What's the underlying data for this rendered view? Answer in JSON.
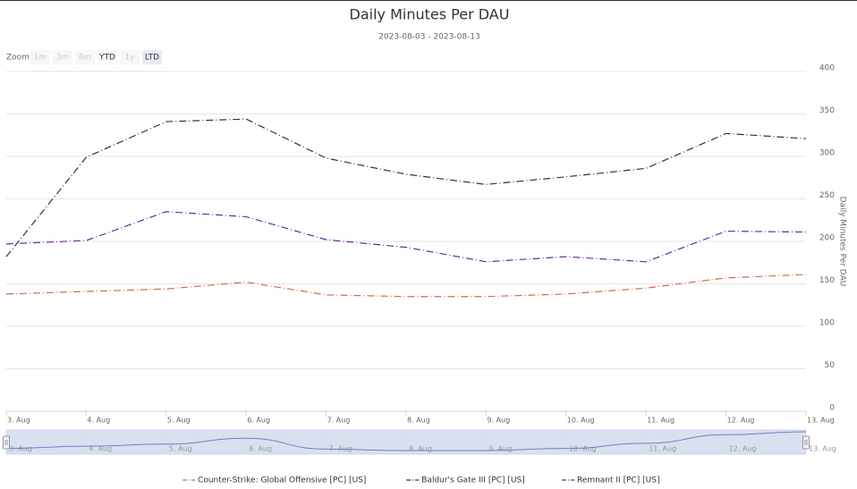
{
  "chart_data": {
    "type": "line",
    "title": "Daily Minutes Per DAU",
    "subtitle": "2023-08-03 - 2023-08-13",
    "zoom_label": "Zoom",
    "zoom_buttons": [
      "1m",
      "3m",
      "6m",
      "YTD",
      "1y",
      "LTD"
    ],
    "y_label": "Daily Minutes Per DAU",
    "categories": [
      "3. Aug",
      "4. Aug",
      "5. Aug",
      "6. Aug",
      "7. Aug",
      "8. Aug",
      "9. Aug",
      "10. Aug",
      "11. Aug",
      "12. Aug",
      "13. Aug"
    ],
    "series": [
      {
        "name": "Counter-Strike: Global Offensive [PC] [US]",
        "color": "#d46a4f",
        "values": [
          138,
          141,
          144,
          152,
          137,
          135,
          135,
          138,
          145,
          157,
          161
        ]
      },
      {
        "name": "Baldur's Gate III [PC] [US]",
        "color": "#333333",
        "values": [
          182,
          299,
          341,
          344,
          298,
          279,
          267,
          276,
          286,
          327,
          321
        ]
      },
      {
        "name": "Remnant II [PC] [US]",
        "color": "#6a2a9c",
        "values": [
          197,
          201,
          235,
          229,
          202,
          193,
          176,
          182,
          176,
          212,
          211
        ]
      }
    ],
    "ylim": [
      0,
      400
    ],
    "yticks": [
      0,
      50,
      100,
      150,
      200,
      250,
      300,
      350,
      400
    ],
    "grid": true,
    "legend": "bottom"
  }
}
